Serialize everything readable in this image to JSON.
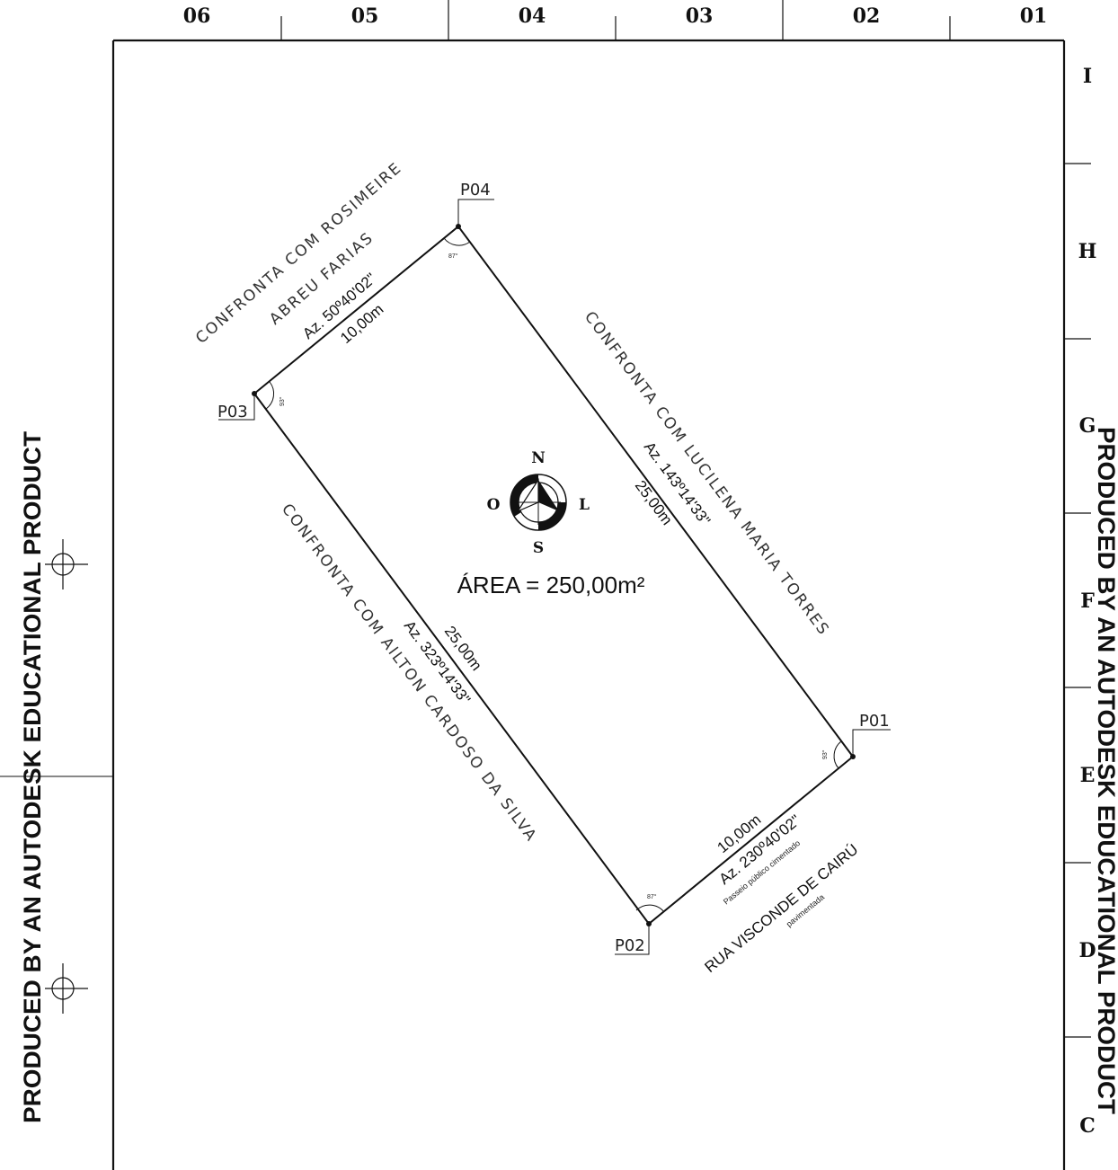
{
  "grid": {
    "columns": [
      "06",
      "05",
      "04",
      "03",
      "02",
      "01"
    ],
    "rows": [
      "I",
      "H",
      "G",
      "F",
      "E",
      "D",
      "C"
    ]
  },
  "watermark": {
    "left": "PRODUCED BY AN AUTODESK EDUCATIONAL PRODUCT",
    "right": "PRODUCED BY AN AUTODESK EDUCATIONAL PRODUCT"
  },
  "points": {
    "p01": "P01",
    "p02": "P02",
    "p03": "P03",
    "p04": "P04"
  },
  "angles": {
    "p01": "93°",
    "p02": "87°",
    "p03": "93°",
    "p04": "87°"
  },
  "sides": {
    "north_west": {
      "confronta_line1": "CONFRONTA COM ROSIMEIRE",
      "confronta_line2": "ABREU FARIAS",
      "azimuth": "Az. 50º40'02\"",
      "length": "10,00m"
    },
    "north_east": {
      "confronta": "CONFRONTA COM LUCILENA MARIA TORRES",
      "azimuth": "Az. 143º14'33\"",
      "length": "25,00m"
    },
    "south_west": {
      "confronta": "CONFRONTA COM AILTON CARDOSO DA SILVA",
      "azimuth": "Az. 323º14'33\"",
      "length": "25,00m"
    },
    "south_east": {
      "length": "10,00m",
      "azimuth": "Az. 230º40'02\"",
      "sidewalk": "Passeio público cimentado",
      "street": "RUA VISCONDE DE CAIRÚ",
      "pavement": "pavimentada"
    }
  },
  "area": "ÁREA = 250,00m²",
  "compass": {
    "n": "N",
    "s": "S",
    "o": "O",
    "l": "L"
  }
}
